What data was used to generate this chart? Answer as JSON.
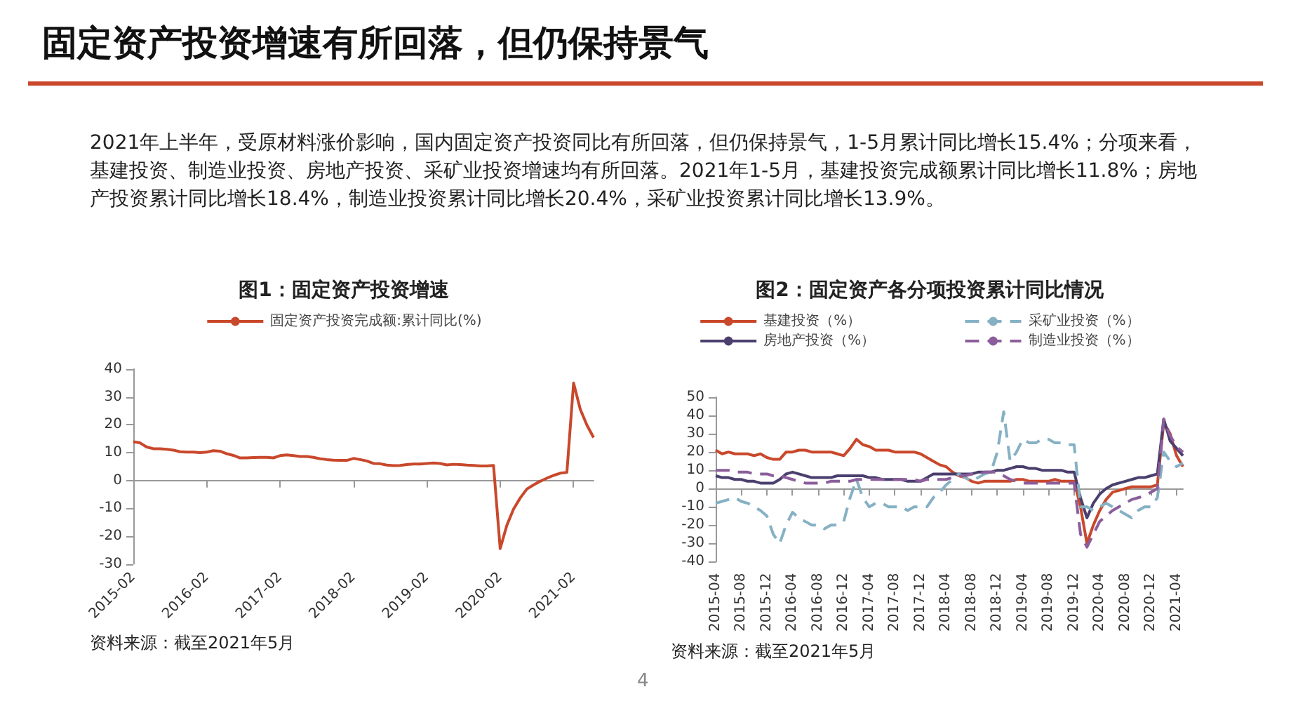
{
  "chart_data": [
    {
      "type": "other",
      "title": "固定资产投资增速有所回落，但仍保持景气",
      "annotations": [
        "2021年上半年，受原材料涨价影响，国内固定资产投资同比有所回落，但仍保持景气，1-5月累计同比增长15.4%；分项来看，基建投资、制造业投资、房地产投资、采矿业投资增速均有所回落。2021年1-5月，基建投资完成额累计同比增长11.8%；房地产投资累计同比增长18.4%，制造业投资累计同比增长20.4%，采矿业投资累计同比增长13.9%。",
        "4"
      ]
    },
    {
      "type": "line",
      "title": "图1：固定资产投资增速",
      "legend": "top",
      "marker": "none",
      "ylim": [
        -30,
        40
      ],
      "yticks": [
        -30,
        -20,
        -10,
        0,
        10,
        20,
        30,
        40
      ],
      "annotations": [
        "资料来源：截至2021年5月"
      ],
      "categories": [
        "2015-02",
        null,
        null,
        null,
        null,
        null,
        null,
        null,
        null,
        null,
        null,
        "2016-02",
        null,
        null,
        null,
        null,
        null,
        null,
        null,
        null,
        null,
        null,
        "2017-02",
        null,
        null,
        null,
        null,
        null,
        null,
        null,
        null,
        null,
        null,
        "2018-02",
        null,
        null,
        null,
        null,
        null,
        null,
        null,
        null,
        null,
        null,
        "2019-02",
        null,
        null,
        null,
        null,
        null,
        null,
        null,
        null,
        null,
        null,
        "2020-02",
        null,
        null,
        null,
        null,
        null,
        null,
        null,
        null,
        null,
        null,
        "2021-02",
        null,
        null,
        null
      ],
      "series": [
        {
          "name": "固定资产投资完成额:累计同比(%)",
          "color": "#c9482b",
          "line_style": "solid",
          "values": [
            13.9,
            13.5,
            12.0,
            11.4,
            11.4,
            11.2,
            10.9,
            10.3,
            10.2,
            10.2,
            10.0,
            10.2,
            10.7,
            10.5,
            9.6,
            9.0,
            8.1,
            8.1,
            8.2,
            8.3,
            8.3,
            8.1,
            8.9,
            9.2,
            8.9,
            8.6,
            8.6,
            8.3,
            7.8,
            7.5,
            7.3,
            7.2,
            7.2,
            7.9,
            7.5,
            7.0,
            6.1,
            6.0,
            5.5,
            5.3,
            5.4,
            5.7,
            5.9,
            5.9,
            6.1,
            6.3,
            6.1,
            5.6,
            5.8,
            5.7,
            5.5,
            5.4,
            5.2,
            5.2,
            5.4,
            -24.5,
            -16.1,
            -10.3,
            -6.3,
            -3.1,
            -1.6,
            -0.3,
            0.8,
            1.8,
            2.6,
            2.9,
            35.0,
            25.6,
            19.9,
            15.4
          ]
        }
      ]
    },
    {
      "type": "line",
      "title": "图2：固定资产各分项投资累计同比情况",
      "legend": "top",
      "marker": "none",
      "ylim": [
        -40,
        50
      ],
      "yticks": [
        -40,
        -30,
        -20,
        -10,
        0,
        10,
        20,
        30,
        40,
        50
      ],
      "annotations": [
        "资料来源：截至2021年5月"
      ],
      "categories": [
        "2015-04",
        null,
        null,
        null,
        "2015-08",
        null,
        null,
        null,
        "2015-12",
        null,
        null,
        null,
        "2016-04",
        null,
        null,
        null,
        "2016-08",
        null,
        null,
        null,
        "2016-12",
        null,
        null,
        null,
        "2017-04",
        null,
        null,
        null,
        "2017-08",
        null,
        null,
        null,
        "2017-12",
        null,
        null,
        null,
        "2018-04",
        null,
        null,
        null,
        "2018-08",
        null,
        null,
        null,
        "2018-12",
        null,
        null,
        null,
        "2019-04",
        null,
        null,
        null,
        "2019-08",
        null,
        null,
        null,
        "2019-12",
        null,
        null,
        null,
        "2020-04",
        null,
        null,
        null,
        "2020-08",
        null,
        null,
        null,
        "2020-12",
        null,
        null,
        null,
        "2021-04",
        null
      ],
      "series": [
        {
          "name": "基建投资（%）",
          "color": "#c9482b",
          "line_style": "solid",
          "values": [
            21,
            19,
            20,
            19,
            19,
            19,
            18,
            19,
            17,
            16,
            16,
            20,
            20,
            21,
            21,
            20,
            20,
            20,
            20,
            19,
            18,
            22,
            27,
            24,
            23,
            21,
            21,
            21,
            20,
            20,
            20,
            20,
            19,
            17,
            15,
            13,
            12,
            9,
            7,
            6,
            4,
            3,
            4,
            4,
            4,
            4,
            4,
            5,
            5,
            4,
            4,
            4,
            4,
            5,
            4,
            4,
            4,
            -10,
            -30,
            -20,
            -12,
            -6,
            -2,
            -1,
            0,
            1,
            1,
            1,
            1,
            2,
            36,
            30,
            18,
            12
          ]
        },
        {
          "name": "房地产投资（%）",
          "color": "#4b3f6e",
          "line_style": "solid",
          "values": [
            7,
            6,
            6,
            5,
            5,
            4,
            4,
            3,
            3,
            3,
            5,
            8,
            9,
            8,
            7,
            6,
            6,
            6,
            6,
            7,
            7,
            7,
            7,
            7,
            6,
            6,
            5,
            5,
            5,
            5,
            4,
            4,
            4,
            6,
            8,
            8,
            8,
            8,
            8,
            8,
            8,
            9,
            9,
            9,
            10,
            10,
            11,
            12,
            12,
            11,
            11,
            10,
            10,
            10,
            10,
            9,
            9,
            -5,
            -16,
            -8,
            -3,
            0,
            2,
            3,
            4,
            5,
            6,
            6,
            7,
            8,
            38,
            26,
            22,
            18
          ]
        },
        {
          "name": "采矿业投资（%）",
          "color": "#86b1c4",
          "line_style": "dashed",
          "values": [
            -8,
            -7,
            -6,
            -5,
            -7,
            -8,
            -10,
            -12,
            -15,
            -25,
            -30,
            -20,
            -13,
            -16,
            -18,
            -20,
            -20,
            -22,
            -20,
            -20,
            -18,
            -5,
            5,
            -5,
            -10,
            -8,
            -8,
            -10,
            -10,
            -10,
            -12,
            -10,
            -10,
            -10,
            -5,
            -2,
            2,
            5,
            8,
            6,
            4,
            6,
            8,
            9,
            20,
            42,
            15,
            20,
            27,
            25,
            25,
            27,
            27,
            25,
            25,
            24,
            24,
            -10,
            -10,
            -12,
            -10,
            -8,
            -10,
            -12,
            -14,
            -16,
            -12,
            -10,
            -10,
            -5,
            20,
            15,
            12,
            13.9
          ]
        },
        {
          "name": "制造业投资（%）",
          "color": "#8b5e9b",
          "line_style": "dashed",
          "values": [
            10,
            10,
            10,
            9,
            9,
            9,
            8,
            8,
            8,
            7,
            7,
            6,
            5,
            4,
            3,
            3,
            3,
            3,
            4,
            4,
            4,
            4,
            5,
            5,
            5,
            5,
            5,
            5,
            5,
            5,
            5,
            5,
            4,
            5,
            5,
            5,
            5,
            6,
            7,
            7,
            8,
            8,
            9,
            9,
            9,
            7,
            5,
            4,
            3,
            3,
            3,
            3,
            3,
            3,
            3,
            3,
            3,
            -25,
            -32,
            -25,
            -18,
            -15,
            -12,
            -10,
            -8,
            -6,
            -5,
            -4,
            -2,
            0,
            38,
            29,
            23,
            20
          ]
        }
      ]
    }
  ]
}
